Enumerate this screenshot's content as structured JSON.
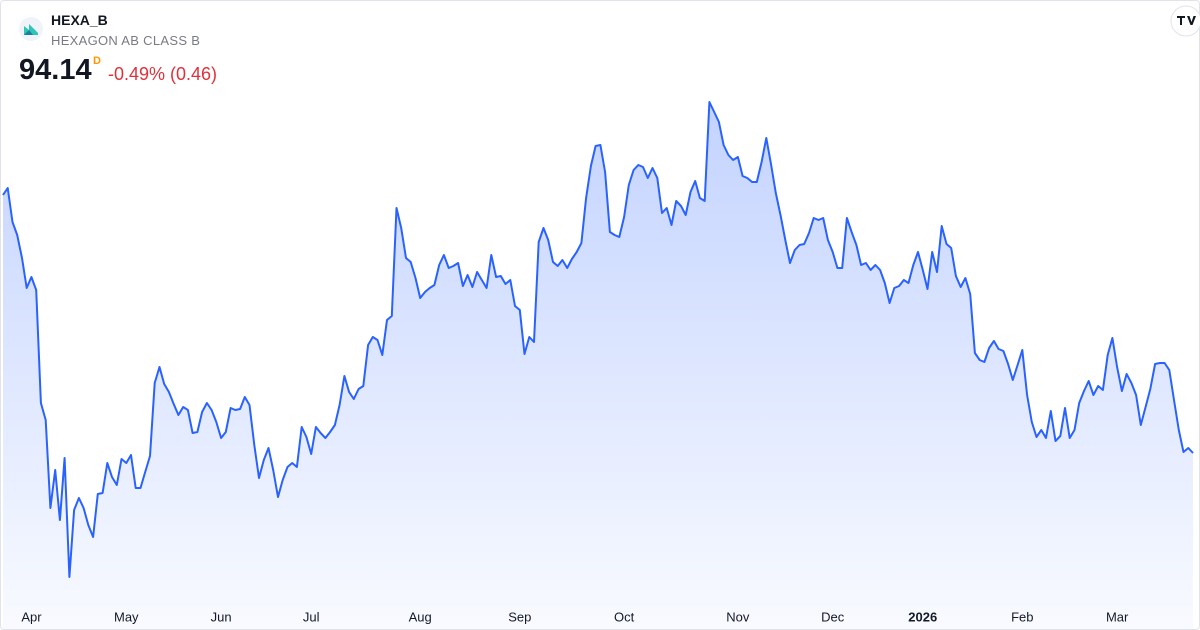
{
  "header": {
    "symbol": "HEXA_B",
    "name": "HEXAGON AB CLASS B",
    "price": "94.14",
    "interval": "D",
    "change": "-0.49% (0.46)"
  },
  "chart_data": {
    "type": "area",
    "color": "#2962ff",
    "xlim": [
      0,
      251
    ],
    "ylim": [
      80.91,
      126.81
    ],
    "xticks": [
      {
        "value": 6,
        "label": "Apr"
      },
      {
        "value": 26,
        "label": "May"
      },
      {
        "value": 46,
        "label": "Jun"
      },
      {
        "value": 65,
        "label": "Jul"
      },
      {
        "value": 88,
        "label": "Aug"
      },
      {
        "value": 109,
        "label": "Sep"
      },
      {
        "value": 131,
        "label": "Oct"
      },
      {
        "value": 155,
        "label": "Nov"
      },
      {
        "value": 175,
        "label": "Dec"
      },
      {
        "value": 194,
        "label": "2026"
      },
      {
        "value": 215,
        "label": "Feb"
      },
      {
        "value": 235,
        "label": "Mar"
      }
    ],
    "values": [
      117.36,
      117.99,
      114.93,
      113.76,
      111.69,
      108.99,
      109.98,
      108.81,
      98.64,
      97.11,
      89.19,
      92.61,
      88.11,
      93.69,
      82.98,
      89.01,
      90.09,
      89.19,
      87.66,
      86.58,
      90.45,
      90.54,
      93.24,
      91.98,
      91.26,
      93.6,
      93.24,
      93.96,
      90.99,
      90.99,
      92.43,
      93.87,
      100.44,
      101.88,
      100.35,
      99.63,
      98.55,
      97.56,
      98.28,
      98.01,
      95.94,
      96.03,
      97.83,
      98.64,
      98.01,
      96.93,
      95.49,
      96.03,
      98.19,
      98.01,
      98.1,
      99.18,
      98.46,
      94.86,
      91.89,
      93.51,
      94.59,
      92.61,
      90.18,
      91.71,
      92.88,
      93.24,
      92.88,
      96.48,
      95.58,
      94.05,
      96.48,
      95.94,
      95.49,
      96.03,
      96.66,
      98.46,
      101.07,
      99.63,
      99.0,
      99.9,
      100.17,
      103.86,
      104.58,
      104.31,
      102.96,
      106.11,
      106.47,
      116.19,
      114.39,
      111.69,
      111.33,
      109.89,
      108.09,
      108.63,
      108.99,
      109.26,
      111.06,
      111.96,
      110.79,
      110.97,
      111.24,
      109.17,
      110.16,
      109.08,
      110.43,
      109.71,
      108.99,
      111.96,
      109.98,
      110.07,
      109.35,
      109.71,
      107.37,
      107.01,
      103.05,
      104.58,
      104.13,
      113.13,
      114.39,
      113.31,
      111.33,
      110.97,
      111.51,
      110.79,
      111.6,
      112.23,
      113.04,
      117.09,
      119.97,
      121.77,
      121.86,
      119.43,
      114.03,
      113.76,
      113.58,
      115.38,
      118.26,
      119.61,
      120.06,
      119.88,
      118.89,
      119.79,
      118.89,
      115.74,
      116.19,
      114.66,
      116.82,
      116.37,
      115.56,
      117.63,
      118.62,
      117.09,
      116.82,
      125.73,
      124.83,
      123.93,
      121.86,
      120.96,
      120.51,
      120.78,
      119.07,
      118.89,
      118.53,
      118.53,
      120.33,
      122.49,
      120.15,
      117.54,
      115.56,
      113.31,
      111.24,
      112.41,
      112.86,
      112.95,
      113.94,
      115.29,
      115.11,
      115.29,
      113.31,
      112.23,
      110.79,
      110.79,
      115.29,
      114.03,
      112.86,
      111.06,
      111.24,
      110.61,
      111.06,
      110.61,
      109.44,
      107.64,
      108.99,
      109.17,
      109.71,
      109.44,
      111.06,
      112.23,
      110.61,
      108.9,
      112.23,
      110.43,
      114.57,
      112.95,
      112.59,
      110.07,
      109.08,
      109.89,
      108.45,
      103.14,
      102.51,
      102.33,
      103.59,
      104.22,
      103.5,
      103.32,
      102.15,
      100.71,
      102.06,
      103.41,
      99.36,
      96.93,
      95.58,
      96.21,
      95.49,
      97.92,
      95.22,
      95.67,
      98.19,
      95.49,
      96.21,
      98.64,
      99.72,
      100.62,
      99.36,
      100.17,
      99.81,
      102.96,
      104.49,
      101.88,
      99.72,
      101.25,
      100.44,
      99.36,
      96.66,
      98.28,
      99.9,
      102.15,
      102.24,
      102.24,
      101.61,
      98.91,
      96.21,
      94.23,
      94.59,
      94.14
    ]
  }
}
